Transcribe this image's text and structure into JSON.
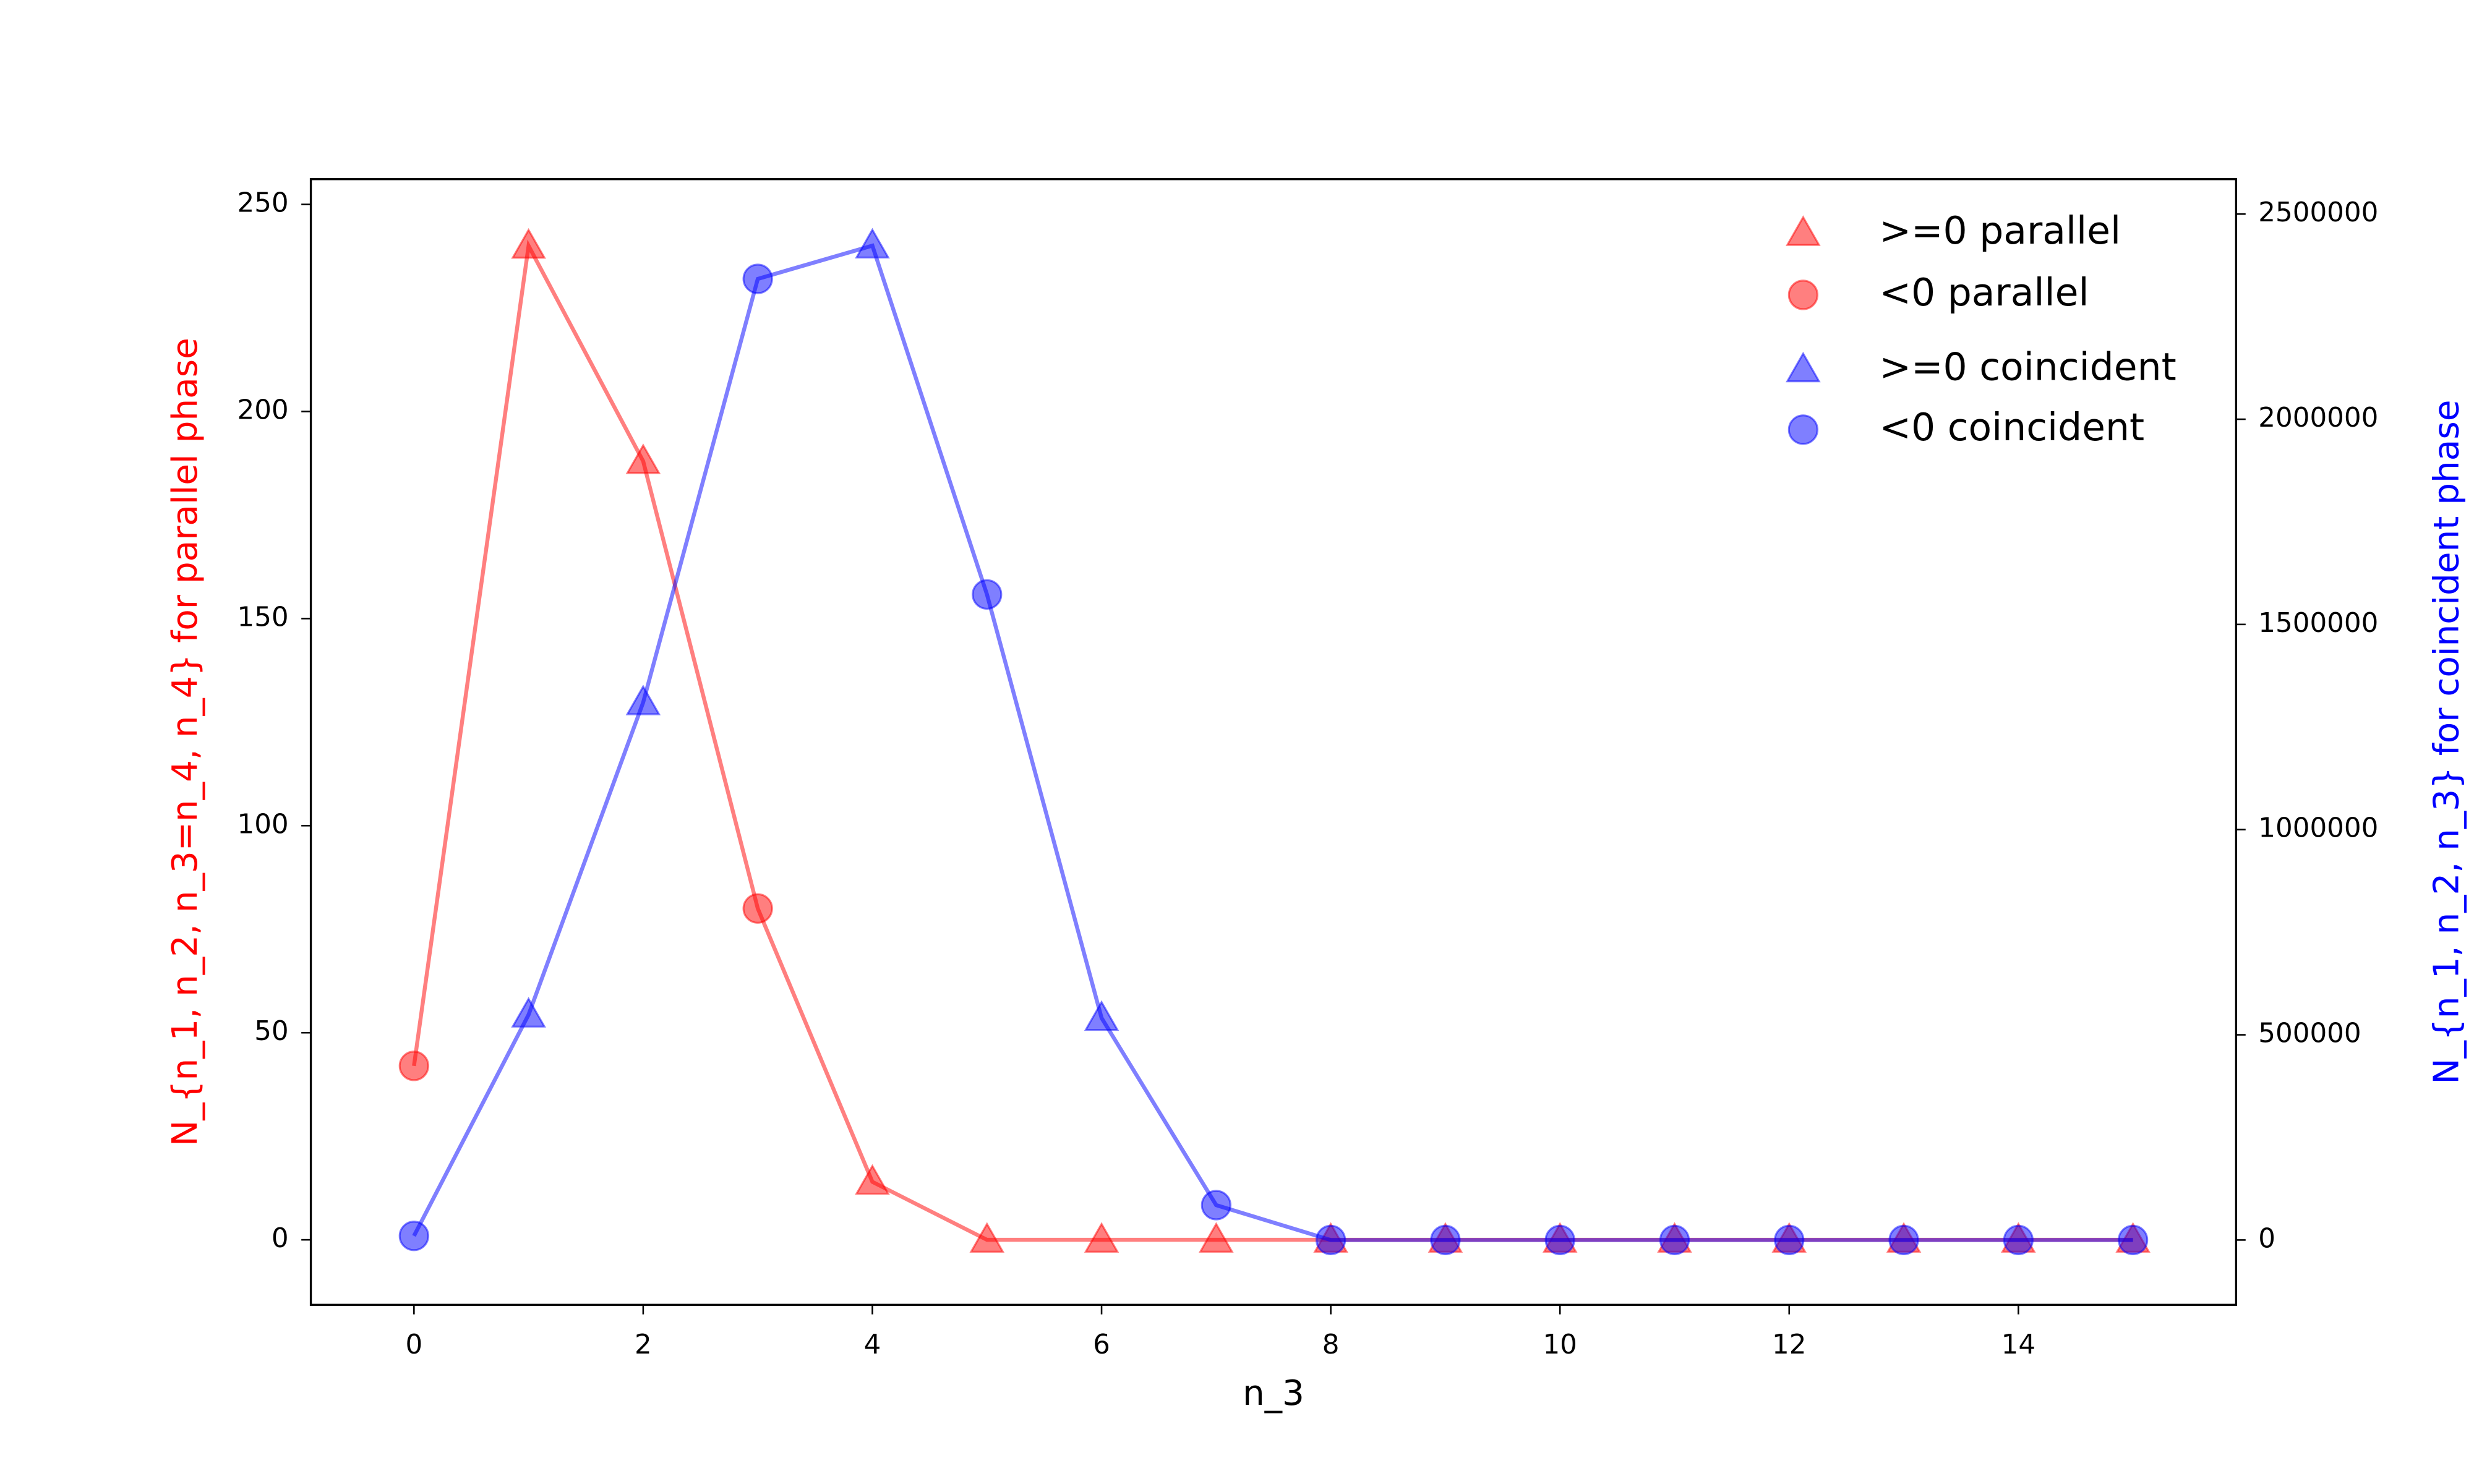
{
  "chart_data": {
    "type": "line",
    "xlabel": "n_3",
    "ylabel": "N_{n_1, n_2, n_3=n_4, n_4} for parallel phase",
    "y2label": "N_{n_1, n_2, n_3} for coincident phase",
    "ylabel_color": "#ff0000",
    "y2label_color": "#0000ff",
    "x": [
      0,
      1,
      2,
      3,
      4,
      5,
      6,
      7,
      8,
      9,
      10,
      11,
      12,
      13,
      14,
      15
    ],
    "xlim": [
      -0.9,
      15.9
    ],
    "xticks": [
      0,
      2,
      4,
      6,
      8,
      10,
      12,
      14
    ],
    "ylim": [
      -15.7,
      256.1
    ],
    "yticks": [
      0,
      50,
      100,
      150,
      200,
      250
    ],
    "y2lim": [
      -158000,
      2585000
    ],
    "y2ticks": [
      0,
      500000,
      1000000,
      1500000,
      2000000,
      2500000
    ],
    "series": [
      {
        "color": "#ff0000",
        "axis": "y",
        "values": [
          42,
          240,
          188,
          80,
          14,
          0,
          0,
          0,
          0,
          0,
          0,
          0,
          0,
          0,
          0,
          0
        ],
        "markers": [
          "circle",
          "triangle",
          "triangle",
          "circle",
          "triangle",
          "triangle",
          "triangle",
          "triangle",
          "triangle",
          "triangle",
          "triangle",
          "triangle",
          "triangle",
          "triangle",
          "triangle",
          "triangle"
        ]
      },
      {
        "color": "#0000ff",
        "axis": "y2",
        "values": [
          10000,
          549000,
          1310000,
          2342000,
          2423000,
          1573000,
          541000,
          85000,
          0,
          0,
          0,
          0,
          0,
          0,
          0,
          0
        ],
        "markers": [
          "circle",
          "triangle",
          "triangle",
          "circle",
          "triangle",
          "circle",
          "triangle",
          "circle",
          "circle",
          "circle",
          "circle",
          "circle",
          "circle",
          "circle",
          "circle",
          "circle"
        ]
      }
    ],
    "legend": [
      {
        "label": ">=0 parallel",
        "series": 0,
        "marker": "triangle"
      },
      {
        "label": "<0 parallel",
        "series": 0,
        "marker": "circle"
      },
      {
        "label": ">=0 coincident",
        "series": 1,
        "marker": "triangle"
      },
      {
        "label": "<0 coincident",
        "series": 1,
        "marker": "circle"
      }
    ],
    "legend_position": "upper right"
  }
}
